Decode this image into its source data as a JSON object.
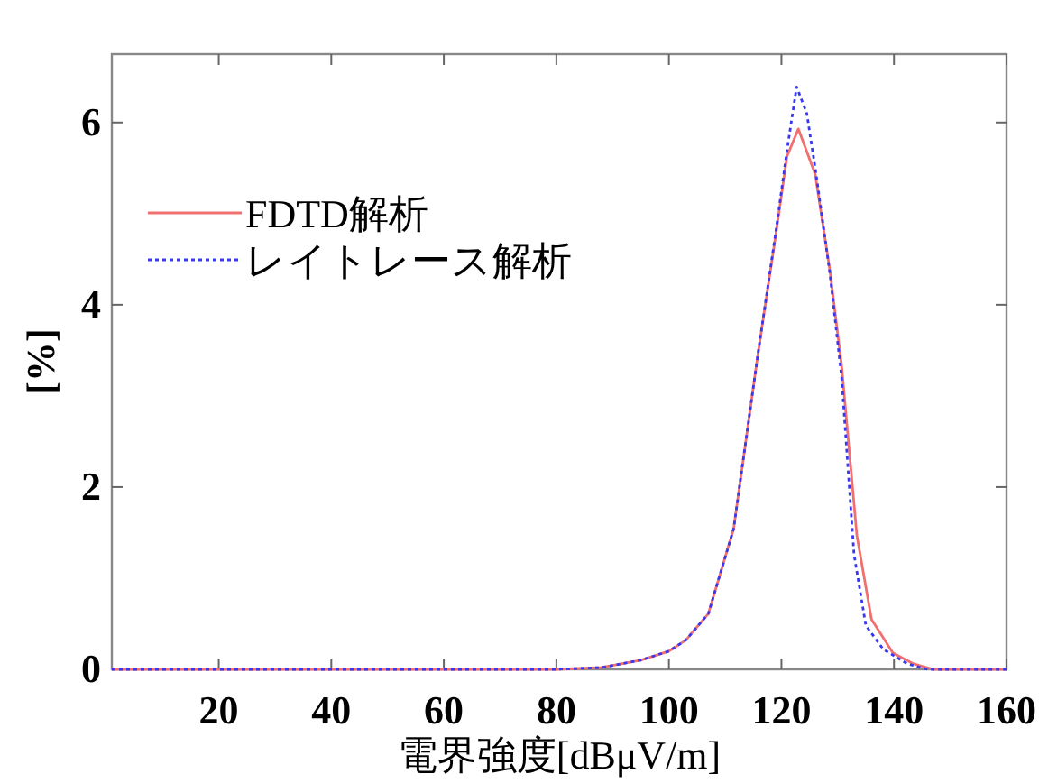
{
  "chart_data": {
    "type": "line",
    "xlabel": "電界強度[dBμV/m]",
    "ylabel": "[%]",
    "xlim": [
      1,
      160
    ],
    "ylim": [
      0,
      6.75
    ],
    "xticks": [
      20,
      40,
      60,
      80,
      100,
      120,
      140,
      160
    ],
    "yticks": [
      0,
      2,
      4,
      6
    ],
    "grid": false,
    "legend": "top left",
    "series": [
      {
        "name": "FDTD解析",
        "color": "#f07070",
        "line_style": "solid",
        "x": [
          1,
          80,
          88,
          95,
          100,
          103,
          107,
          111.5,
          115.8,
          119,
          121,
          123,
          126,
          128.6,
          130.7,
          133.4,
          136,
          139.8,
          143.5,
          147,
          160
        ],
        "values": [
          0,
          0,
          0.02,
          0.1,
          0.2,
          0.32,
          0.61,
          1.54,
          3.45,
          4.77,
          5.63,
          5.93,
          5.43,
          4.38,
          3.33,
          1.47,
          0.55,
          0.18,
          0.06,
          0,
          0
        ]
      },
      {
        "name": "レイトレース解析",
        "color": "#3838f0",
        "line_style": "dotted",
        "x": [
          1,
          80,
          88,
          95,
          100,
          103,
          107,
          111.5,
          115.8,
          119,
          121,
          122.7,
          124.5,
          126,
          128.6,
          130.7,
          132.9,
          135,
          138.1,
          142.4,
          146,
          160
        ],
        "values": [
          0,
          0,
          0.02,
          0.1,
          0.2,
          0.32,
          0.61,
          1.54,
          3.45,
          4.8,
          5.7,
          6.39,
          6.1,
          5.5,
          4.35,
          3.2,
          1.26,
          0.48,
          0.22,
          0.06,
          0,
          0
        ]
      }
    ]
  }
}
